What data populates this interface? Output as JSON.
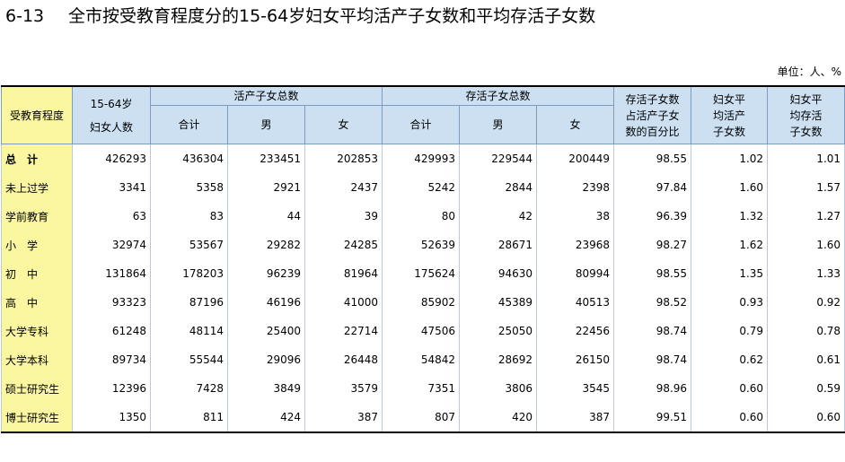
{
  "title": {
    "number": "6-13",
    "text": "全市按受教育程度分的15-64岁妇女平均活产子女数和平均存活子女数"
  },
  "unit": "单位：人、%",
  "headers": {
    "education": "受教育程度",
    "women_line1": "15-64岁",
    "women_line2": "妇女人数",
    "live_births": "活产子女总数",
    "surviving": "存活子女总数",
    "total": "合计",
    "male": "男",
    "female": "女",
    "pct_line1": "存活子女数",
    "pct_line2": "占活产子女",
    "pct_line3": "数的百分比",
    "avg_live_line1": "妇女平",
    "avg_live_line2": "均活产",
    "avg_live_line3": "子女数",
    "avg_surv_line1": "妇女平",
    "avg_surv_line2": "均存活",
    "avg_surv_line3": "子女数"
  },
  "rows": [
    {
      "edu": "总　计",
      "women": "426293",
      "lb_total": "436304",
      "lb_male": "233451",
      "lb_female": "202853",
      "sv_total": "429993",
      "sv_male": "229544",
      "sv_female": "200449",
      "pct": "98.55",
      "avg_live": "1.02",
      "avg_surv": "1.01"
    },
    {
      "edu": "未上过学",
      "women": "3341",
      "lb_total": "5358",
      "lb_male": "2921",
      "lb_female": "2437",
      "sv_total": "5242",
      "sv_male": "2844",
      "sv_female": "2398",
      "pct": "97.84",
      "avg_live": "1.60",
      "avg_surv": "1.57"
    },
    {
      "edu": "学前教育",
      "women": "63",
      "lb_total": "83",
      "lb_male": "44",
      "lb_female": "39",
      "sv_total": "80",
      "sv_male": "42",
      "sv_female": "38",
      "pct": "96.39",
      "avg_live": "1.32",
      "avg_surv": "1.27"
    },
    {
      "edu": "小　学",
      "women": "32974",
      "lb_total": "53567",
      "lb_male": "29282",
      "lb_female": "24285",
      "sv_total": "52639",
      "sv_male": "28671",
      "sv_female": "23968",
      "pct": "98.27",
      "avg_live": "1.62",
      "avg_surv": "1.60"
    },
    {
      "edu": "初　中",
      "women": "131864",
      "lb_total": "178203",
      "lb_male": "96239",
      "lb_female": "81964",
      "sv_total": "175624",
      "sv_male": "94630",
      "sv_female": "80994",
      "pct": "98.55",
      "avg_live": "1.35",
      "avg_surv": "1.33"
    },
    {
      "edu": "高　中",
      "women": "93323",
      "lb_total": "87196",
      "lb_male": "46196",
      "lb_female": "41000",
      "sv_total": "85902",
      "sv_male": "45389",
      "sv_female": "40513",
      "pct": "98.52",
      "avg_live": "0.93",
      "avg_surv": "0.92"
    },
    {
      "edu": "大学专科",
      "women": "61248",
      "lb_total": "48114",
      "lb_male": "25400",
      "lb_female": "22714",
      "sv_total": "47506",
      "sv_male": "25050",
      "sv_female": "22456",
      "pct": "98.74",
      "avg_live": "0.79",
      "avg_surv": "0.78"
    },
    {
      "edu": "大学本科",
      "women": "89734",
      "lb_total": "55544",
      "lb_male": "29096",
      "lb_female": "26448",
      "sv_total": "54842",
      "sv_male": "28692",
      "sv_female": "26150",
      "pct": "98.74",
      "avg_live": "0.62",
      "avg_surv": "0.61"
    },
    {
      "edu": "硕士研究生",
      "women": "12396",
      "lb_total": "7428",
      "lb_male": "3849",
      "lb_female": "3579",
      "sv_total": "7351",
      "sv_male": "3806",
      "sv_female": "3545",
      "pct": "98.96",
      "avg_live": "0.60",
      "avg_surv": "0.59"
    },
    {
      "edu": "博士研究生",
      "women": "1350",
      "lb_total": "811",
      "lb_male": "424",
      "lb_female": "387",
      "sv_total": "807",
      "sv_male": "420",
      "sv_female": "387",
      "pct": "99.51",
      "avg_live": "0.60",
      "avg_surv": "0.60"
    }
  ]
}
